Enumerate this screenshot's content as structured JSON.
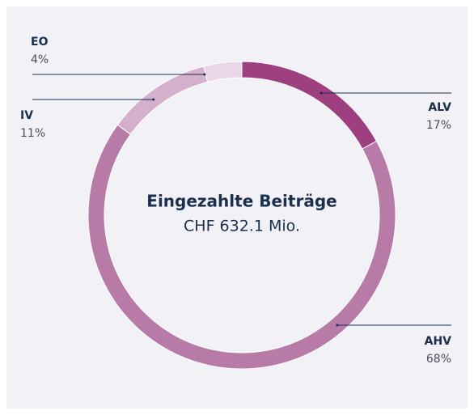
{
  "chart_data": {
    "type": "pie",
    "center_title": "Eingezahlte Beiträge",
    "center_subtitle": "CHF 632.1 Mio.",
    "categories": [
      "ALV",
      "AHV",
      "IV",
      "EO"
    ],
    "values": [
      17,
      68,
      11,
      4
    ],
    "value_labels": [
      "17%",
      "68%",
      "11%",
      "4%"
    ],
    "colors": [
      "#9e3f80",
      "#b87aa6",
      "#d4b0cc",
      "#ead6e6"
    ]
  }
}
